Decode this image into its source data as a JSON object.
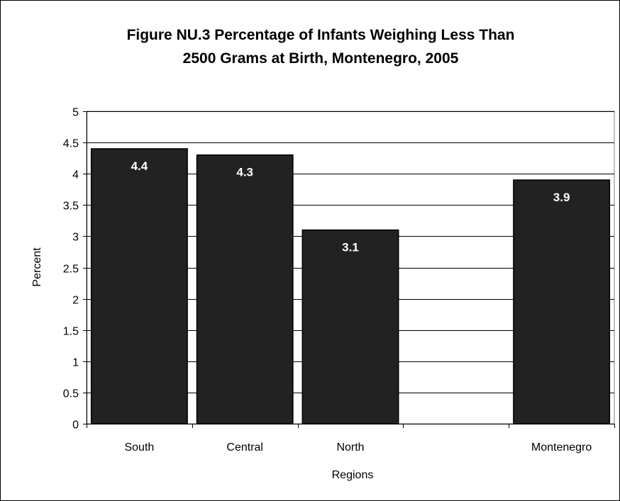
{
  "chart_data": {
    "type": "bar",
    "title_line1": "Figure NU.3 Percentage of Infants Weighing Less Than",
    "title_line2": "2500 Grams at Birth, Montenegro, 2005",
    "xlabel": "Regions",
    "ylabel": "Percent",
    "categories": [
      "South",
      "Central",
      "North",
      "",
      "Montenegro"
    ],
    "values": [
      4.4,
      4.3,
      3.1,
      null,
      3.9
    ],
    "data_labels": [
      "4.4",
      "4.3",
      "3.1",
      "",
      "3.9"
    ],
    "ylim": [
      0,
      5
    ],
    "yticks": [
      "0",
      "0.5",
      "1",
      "1.5",
      "2",
      "2.5",
      "3",
      "3.5",
      "4",
      "4.5",
      "5"
    ],
    "ytick_values": [
      0,
      0.5,
      1,
      1.5,
      2,
      2.5,
      3,
      3.5,
      4,
      4.5,
      5
    ],
    "grid": true,
    "legend": "none",
    "colors": {
      "bar": "#222222",
      "bar_stroke": "#000000",
      "grid": "#000000",
      "plot_border": "#808080",
      "label": "#ffffff"
    }
  }
}
